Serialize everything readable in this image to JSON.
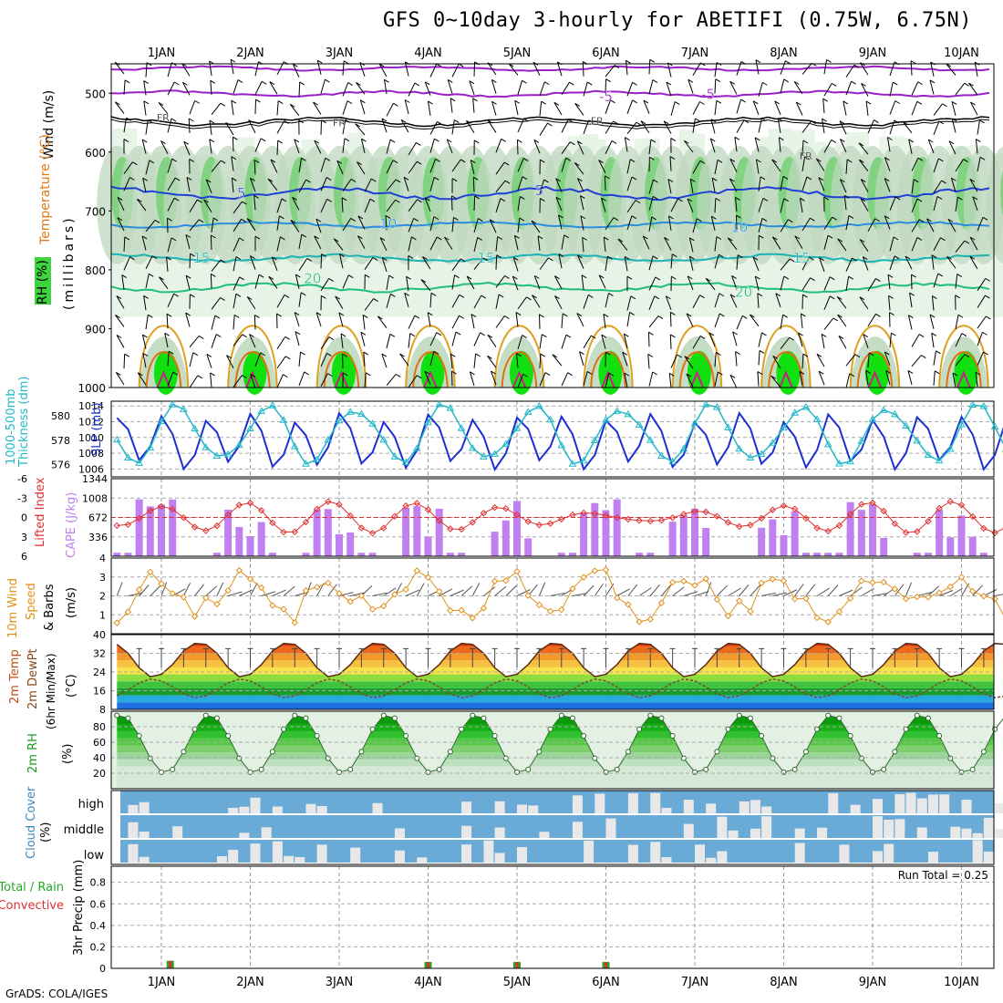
{
  "title": "GFS 0~10day 3-hourly for ABETIFI (0.75W, 6.75N)",
  "credit": "GrADS: COLA/IGES",
  "colors": {
    "purple": "#9b1fc9",
    "black": "#000000",
    "blue": "#1e3fd8",
    "skyblue": "#2a8ee0",
    "teal": "#1ab2b2",
    "green_contour": "#1fbf7a",
    "orange": "#e0a020",
    "darkorange": "#e07010",
    "magenta": "#d01a8a",
    "rh_light": "#e6f3e6",
    "rh_mid": "#bfd8bf",
    "rh_dark": "#6fcf6f",
    "rh_bright": "#10e010",
    "cape": "#c080f0",
    "li": "#e03030",
    "wind": "#e0901a",
    "slp": "#1c2fd0",
    "thick": "#22b8c8",
    "cloud_bg": "#6aaad6",
    "cloud_bar": "#e8e8e8",
    "rain": "#22aa22",
    "conv": "#e03030"
  },
  "chart_data": {
    "type": "meteogram",
    "date_labels": [
      "1JAN",
      "2JAN",
      "3JAN",
      "4JAN",
      "5JAN",
      "6JAN",
      "7JAN",
      "8JAN",
      "9JAN",
      "10JAN"
    ],
    "panels": [
      {
        "id": "profile",
        "ylabels": [
          "Wind (m/s)",
          "Temperature (°C)",
          "RH (%)",
          "(millibars)"
        ],
        "yticks": [
          "500",
          "600",
          "700",
          "800",
          "900",
          "1000"
        ],
        "ylim": [
          1000,
          450
        ],
        "contour_labels": [
          {
            "text": "-5",
            "color": "purple",
            "x": 5.0,
            "p": 506
          },
          {
            "text": "-5",
            "color": "purple",
            "x": 6.15,
            "p": 502
          },
          {
            "text": "FR",
            "color": "black",
            "x": 0.02,
            "p": 540
          },
          {
            "text": "FR",
            "color": "black",
            "x": 2.0,
            "p": 548
          },
          {
            "text": "FR",
            "color": "black",
            "x": 4.9,
            "p": 545
          },
          {
            "text": "FR",
            "color": "black",
            "x": 7.25,
            "p": 605
          },
          {
            "text": "5",
            "color": "blue",
            "x": 0.9,
            "p": 670
          },
          {
            "text": "5",
            "color": "blue",
            "x": 4.25,
            "p": 665
          },
          {
            "text": "10",
            "color": "skyblue",
            "x": 2.55,
            "p": 722
          },
          {
            "text": "10",
            "color": "skyblue",
            "x": 6.5,
            "p": 728
          },
          {
            "text": "15",
            "color": "teal",
            "x": 0.45,
            "p": 780
          },
          {
            "text": "15",
            "color": "teal",
            "x": 3.65,
            "p": 780
          },
          {
            "text": "15",
            "color": "teal",
            "x": 7.2,
            "p": 780
          },
          {
            "text": "20",
            "color": "green_contour",
            "x": 1.7,
            "p": 815
          },
          {
            "text": "20",
            "color": "green_contour",
            "x": 6.55,
            "p": 838
          }
        ]
      },
      {
        "id": "slp_thickness",
        "ylabel_left": [
          "1000-500mb",
          "Thickness (dm)"
        ],
        "ylabel_right": "SLP (mb)",
        "thickness_ticks": [
          "576",
          "578",
          "580"
        ],
        "slp_ticks": [
          "1006",
          "1008",
          "1010",
          "1012",
          "1014"
        ],
        "thickness_ylim": [
          575,
          581.2
        ],
        "slp_ylim": [
          1005,
          1014.6
        ]
      },
      {
        "id": "cape_li",
        "ylabel_left": "Lifted Index",
        "ylabel_right": "CAPE (J/kg)",
        "li_ticks": [
          "-6",
          "-3",
          "0",
          "3",
          "6"
        ],
        "cape_ticks": [
          "336",
          "672",
          "1008",
          "1344"
        ],
        "li_ylim": [
          6,
          -6
        ],
        "cape_ylim": [
          0,
          1344
        ]
      },
      {
        "id": "wind10m",
        "ylabel": [
          "10m Wind",
          "Speed",
          "& Barbs",
          "(m/s)"
        ],
        "yticks": [
          "1",
          "2",
          "3",
          "4"
        ],
        "ylim": [
          0,
          4
        ]
      },
      {
        "id": "temp2m",
        "ylabel": [
          "2m Temp",
          "2m DewPt",
          "(6hr Min/Max)",
          "(°C)"
        ],
        "yticks": [
          "8",
          "16",
          "24",
          "32",
          "40"
        ],
        "ylim": [
          8,
          40
        ]
      },
      {
        "id": "rh2m",
        "ylabel": [
          "2m RH",
          "(%)"
        ],
        "yticks": [
          "20",
          "40",
          "60",
          "80"
        ],
        "ylim": [
          0,
          100
        ]
      },
      {
        "id": "cloud",
        "ylabel": [
          "Cloud Cover",
          "(%)"
        ],
        "levels": [
          "high",
          "middle",
          "low"
        ]
      },
      {
        "id": "precip",
        "ylabel": [
          "3hr Precip (mm)"
        ],
        "legend": [
          "Total / Rain",
          "Convective"
        ],
        "yticks": [
          "0",
          "0.2",
          "0.4",
          "0.6",
          "0.8"
        ],
        "ylim": [
          0,
          0.95
        ],
        "run_total": "Run Total = 0.25",
        "bars": [
          {
            "x": 0.1,
            "value": 0.07
          },
          {
            "x": 3.0,
            "value": 0.06
          },
          {
            "x": 4.0,
            "value": 0.06
          },
          {
            "x": 5.0,
            "value": 0.06
          }
        ]
      }
    ]
  }
}
